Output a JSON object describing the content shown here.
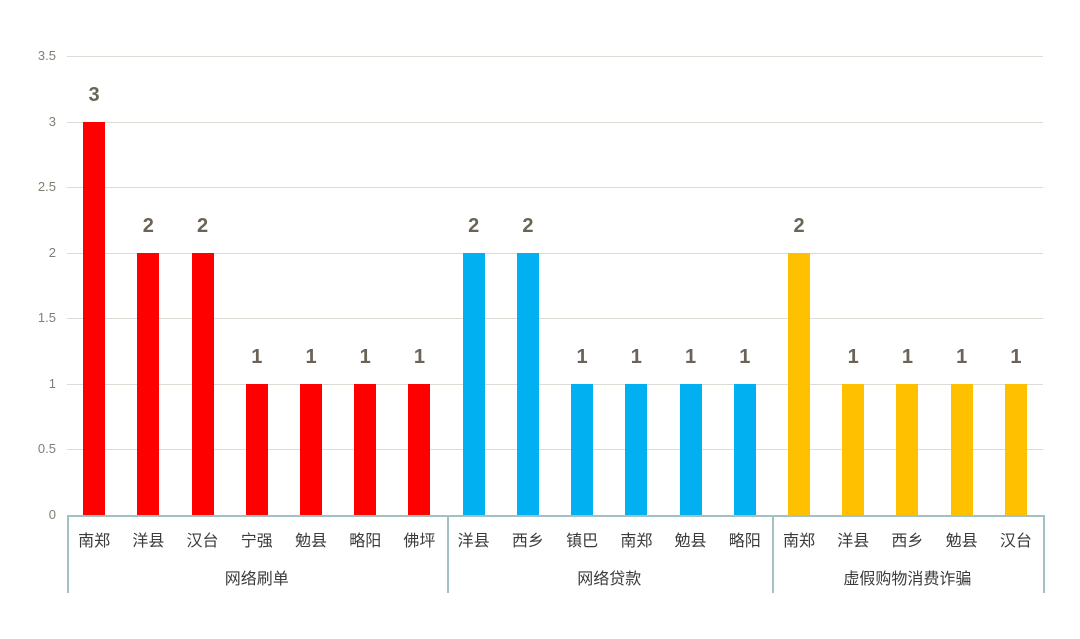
{
  "chart_data": {
    "type": "bar",
    "title": "",
    "xlabel": "",
    "ylabel": "",
    "ylim": [
      0,
      3.5
    ],
    "yticks": [
      "0",
      "0.5",
      "1",
      "1.5",
      "2",
      "2.5",
      "3",
      "3.5"
    ],
    "grid": true,
    "legend": null,
    "data_labels": true,
    "groups": [
      {
        "name": "网络刷单",
        "color": "#ff0000",
        "categories": [
          "南郑",
          "洋县",
          "汉台",
          "宁强",
          "勉县",
          "略阳",
          "佛坪"
        ],
        "values": [
          3,
          2,
          2,
          1,
          1,
          1,
          1
        ]
      },
      {
        "name": "网络贷款",
        "color": "#00b0f0",
        "categories": [
          "洋县",
          "西乡",
          "镇巴",
          "南郑",
          "勉县",
          "略阳"
        ],
        "values": [
          2,
          2,
          1,
          1,
          1,
          1
        ]
      },
      {
        "name": "虚假购物消费诈骗",
        "color": "#ffc000",
        "categories": [
          "南郑",
          "洋县",
          "西乡",
          "勉县",
          "汉台"
        ],
        "values": [
          2,
          1,
          1,
          1,
          1
        ]
      }
    ]
  }
}
